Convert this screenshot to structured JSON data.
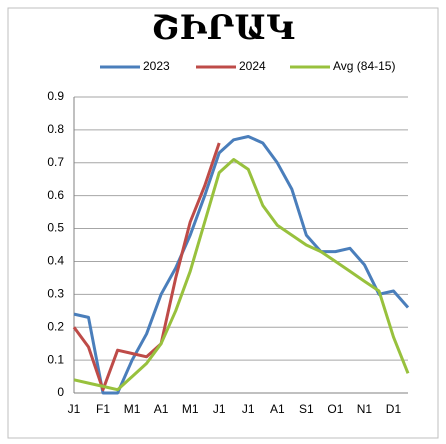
{
  "chart_data": {
    "type": "line",
    "title": "ՇԻՐԱԿ",
    "categories": [
      "J1",
      null,
      "F1",
      null,
      "M1",
      null,
      "A1",
      null,
      "M1",
      null,
      "J1",
      null,
      "J1",
      null,
      "A1",
      null,
      "S1",
      null,
      "O1",
      null,
      "N1",
      null,
      "D1",
      null
    ],
    "series": [
      {
        "name": "2023",
        "color": "#4a7ebb",
        "values": [
          0.24,
          0.23,
          0.0,
          0.0,
          0.1,
          0.18,
          0.3,
          0.38,
          0.48,
          0.6,
          0.73,
          0.77,
          0.78,
          0.76,
          0.7,
          0.62,
          0.48,
          0.43,
          0.43,
          0.44,
          0.39,
          0.3,
          0.31,
          0.26
        ]
      },
      {
        "name": "2024",
        "color": "#be4b48",
        "values": [
          0.2,
          0.14,
          0.01,
          0.13,
          0.12,
          0.11,
          0.15,
          0.35,
          0.52,
          0.63,
          0.76,
          null,
          null,
          null,
          null,
          null,
          null,
          null,
          null,
          null,
          null,
          null,
          null,
          null
        ]
      },
      {
        "name": "Avg (84-15)",
        "color": "#98c13d",
        "values": [
          0.04,
          0.03,
          0.02,
          0.01,
          0.05,
          0.09,
          0.15,
          0.25,
          0.37,
          0.52,
          0.67,
          0.71,
          0.68,
          0.57,
          0.51,
          0.48,
          0.45,
          0.43,
          0.4,
          0.37,
          0.34,
          0.31,
          0.17,
          0.06
        ]
      }
    ],
    "ylim": [
      0,
      0.9
    ],
    "yticks": [
      0,
      0.1,
      0.2,
      0.3,
      0.4,
      0.5,
      0.6,
      0.7,
      0.8,
      0.9
    ],
    "grid": true,
    "legend": "top"
  }
}
